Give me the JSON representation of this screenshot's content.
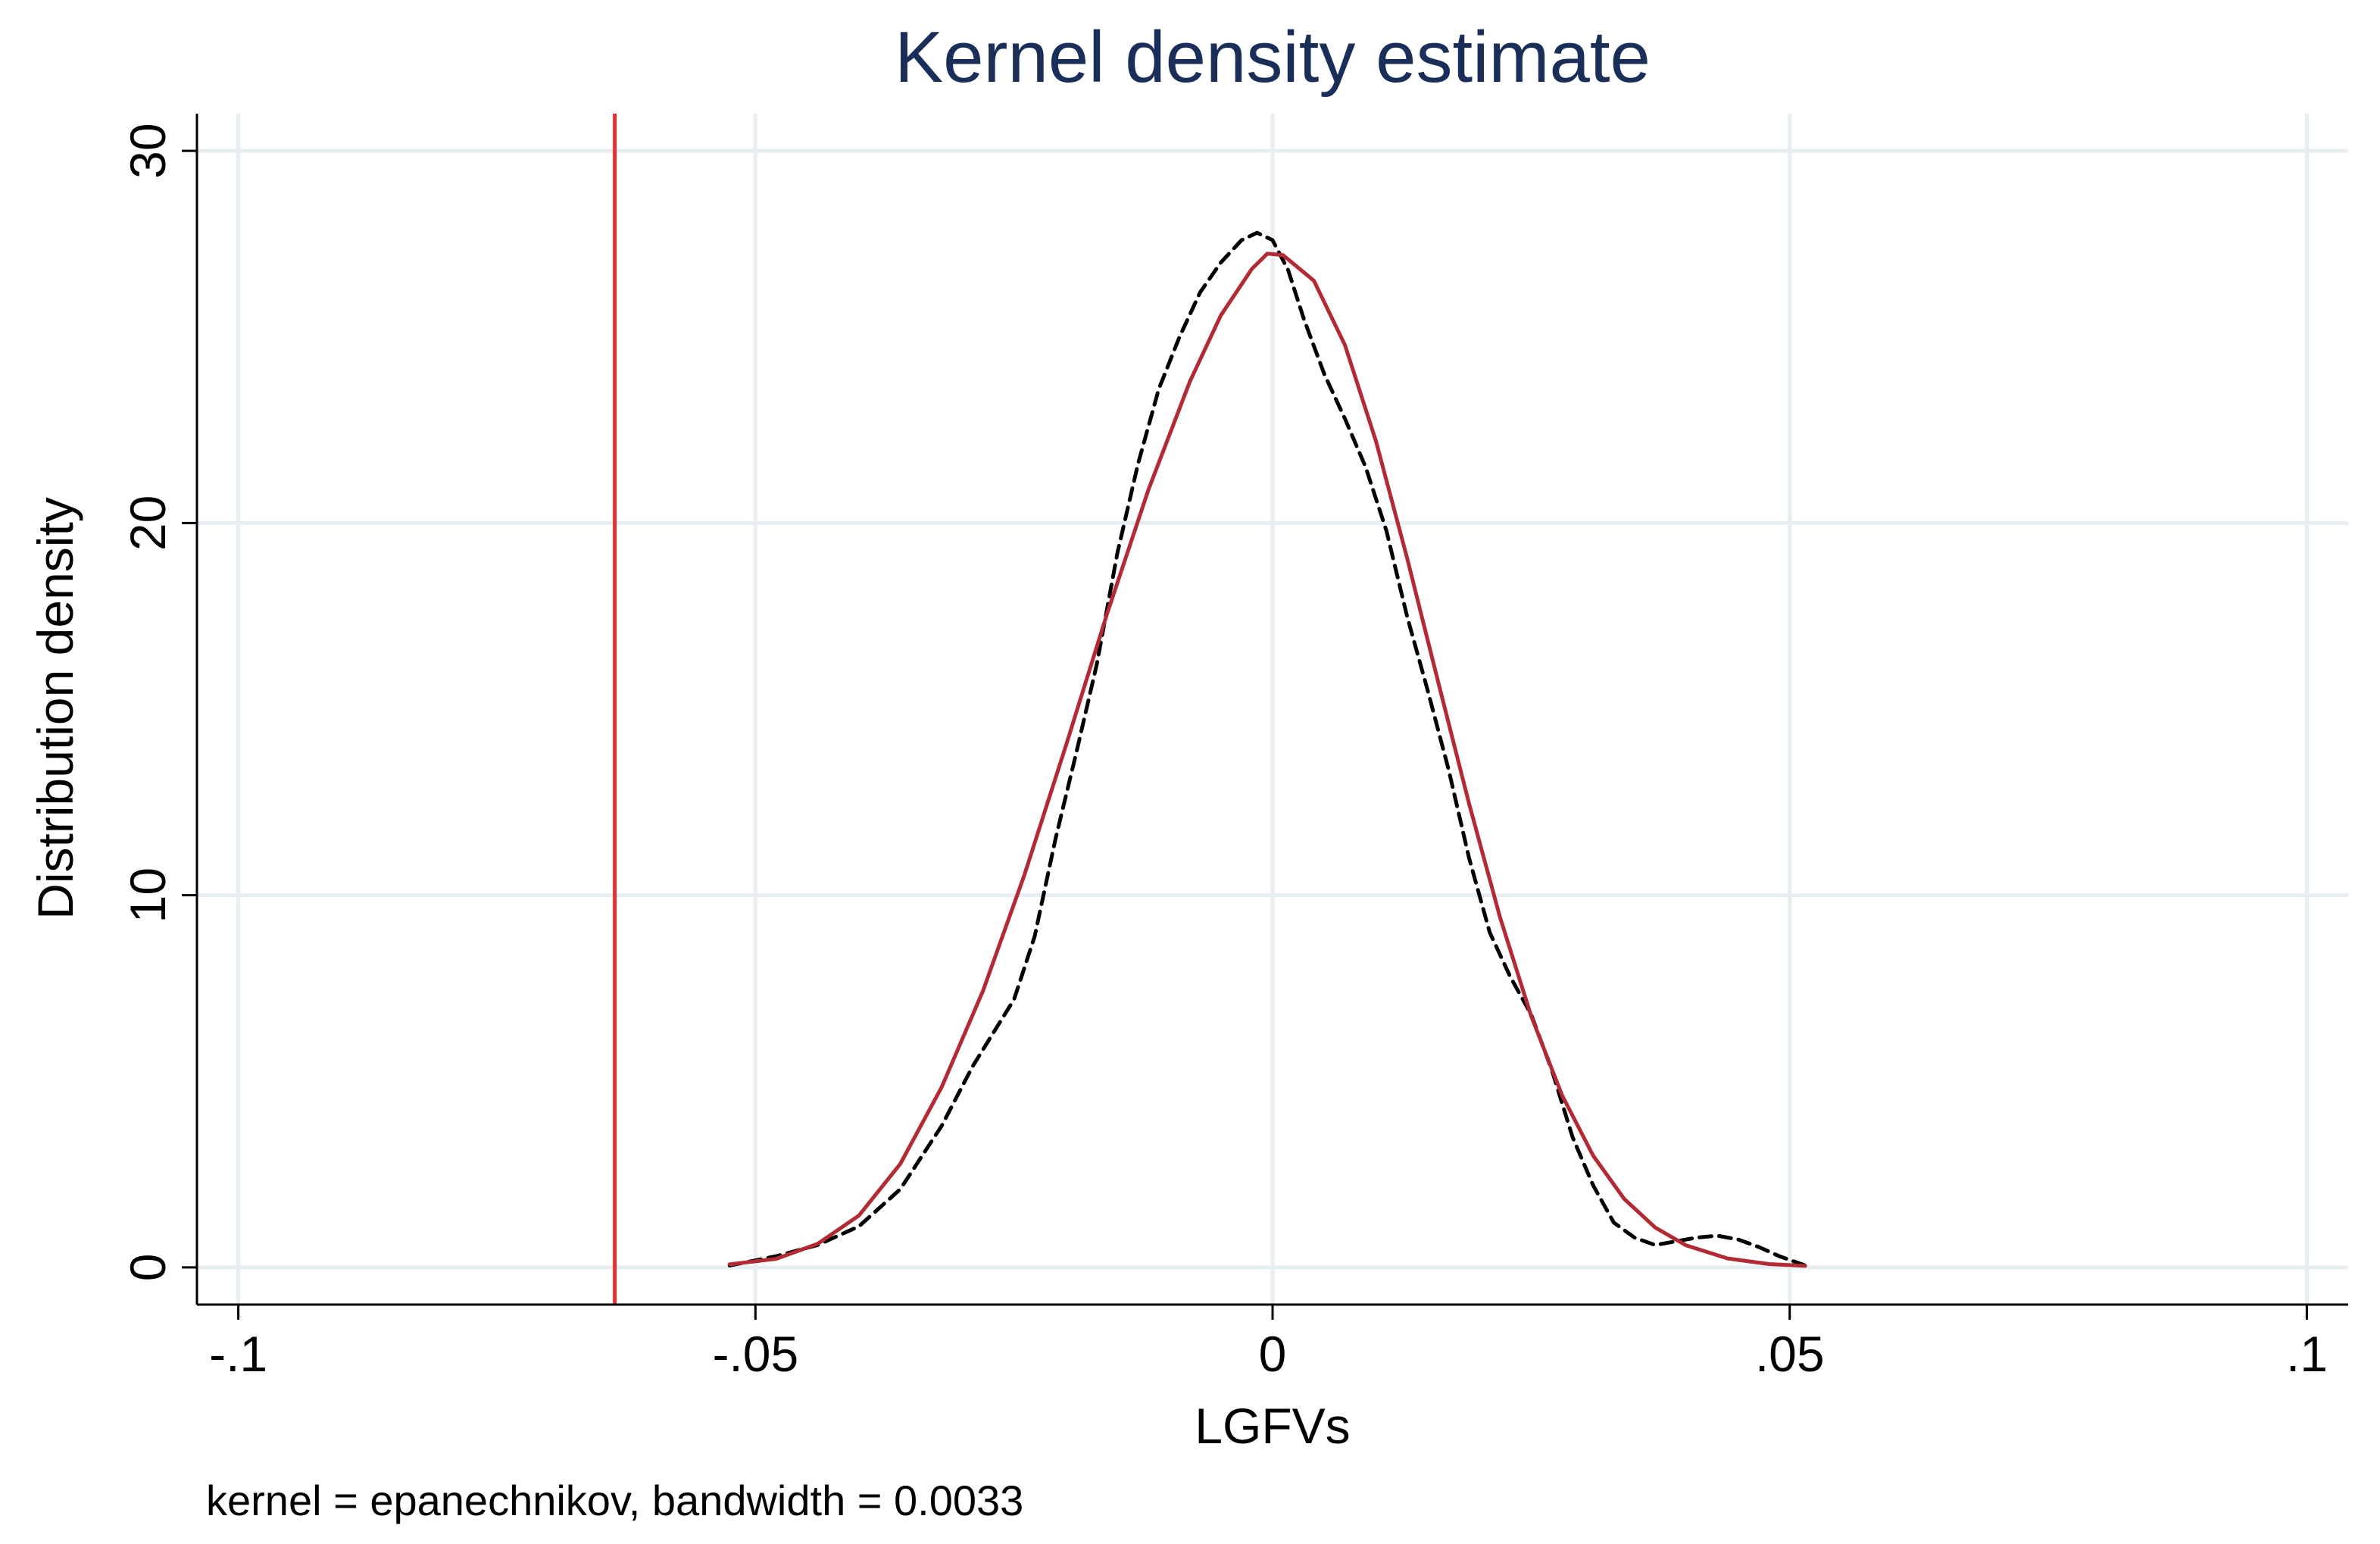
{
  "chart_data": {
    "type": "line",
    "title": "Kernel density estimate",
    "xlabel": "LGFVs",
    "ylabel": "Distribution density",
    "note": "kernel = epanechnikov, bandwidth = 0.0033",
    "xlim": [
      -0.104,
      0.104
    ],
    "ylim": [
      -1.0,
      31.0
    ],
    "x_ticks": [
      {
        "value": -0.1,
        "label": "-.1"
      },
      {
        "value": -0.05,
        "label": "-.05"
      },
      {
        "value": 0,
        "label": "0"
      },
      {
        "value": 0.05,
        "label": ".05"
      },
      {
        "value": 0.1,
        "label": ".1"
      }
    ],
    "y_ticks": [
      {
        "value": 0,
        "label": "0"
      },
      {
        "value": 10,
        "label": "10"
      },
      {
        "value": 20,
        "label": "20"
      },
      {
        "value": 30,
        "label": "30"
      }
    ],
    "grid": true,
    "reference_line": {
      "x": -0.0636,
      "color": "#e03030"
    },
    "series": [
      {
        "style": "dashed",
        "color": "#000000",
        "points": [
          [
            -0.0525,
            0.05
          ],
          [
            -0.048,
            0.3
          ],
          [
            -0.044,
            0.6
          ],
          [
            -0.04,
            1.1
          ],
          [
            -0.036,
            2.1
          ],
          [
            -0.032,
            3.8
          ],
          [
            -0.029,
            5.4
          ],
          [
            -0.027,
            6.3
          ],
          [
            -0.025,
            7.2
          ],
          [
            -0.023,
            8.9
          ],
          [
            -0.021,
            11.5
          ],
          [
            -0.019,
            13.8
          ],
          [
            -0.017,
            16.2
          ],
          [
            -0.015,
            19.2
          ],
          [
            -0.013,
            21.6
          ],
          [
            -0.011,
            23.6
          ],
          [
            -0.009,
            25.0
          ],
          [
            -0.007,
            26.2
          ],
          [
            -0.005,
            27.0
          ],
          [
            -0.003,
            27.6
          ],
          [
            -0.0015,
            27.8
          ],
          [
            0.0,
            27.6
          ],
          [
            0.0015,
            26.8
          ],
          [
            0.003,
            25.5
          ],
          [
            0.005,
            24.0
          ],
          [
            0.007,
            22.8
          ],
          [
            0.009,
            21.5
          ],
          [
            0.011,
            19.8
          ],
          [
            0.013,
            17.5
          ],
          [
            0.015,
            15.5
          ],
          [
            0.017,
            13.4
          ],
          [
            0.019,
            11.0
          ],
          [
            0.021,
            9.0
          ],
          [
            0.023,
            7.8
          ],
          [
            0.025,
            6.8
          ],
          [
            0.027,
            5.3
          ],
          [
            0.029,
            3.5
          ],
          [
            0.031,
            2.2
          ],
          [
            0.033,
            1.2
          ],
          [
            0.035,
            0.8
          ],
          [
            0.037,
            0.6
          ],
          [
            0.039,
            0.7
          ],
          [
            0.041,
            0.8
          ],
          [
            0.043,
            0.85
          ],
          [
            0.045,
            0.75
          ],
          [
            0.047,
            0.55
          ],
          [
            0.049,
            0.3
          ],
          [
            0.0515,
            0.05
          ]
        ]
      },
      {
        "style": "solid",
        "color": "#b22a34",
        "points": [
          [
            -0.0525,
            0.08
          ],
          [
            -0.048,
            0.23
          ],
          [
            -0.044,
            0.63
          ],
          [
            -0.04,
            1.39
          ],
          [
            -0.036,
            2.78
          ],
          [
            -0.032,
            4.84
          ],
          [
            -0.028,
            7.43
          ],
          [
            -0.024,
            10.54
          ],
          [
            -0.02,
            14.0
          ],
          [
            -0.016,
            17.56
          ],
          [
            -0.012,
            20.9
          ],
          [
            -0.008,
            23.8
          ],
          [
            -0.005,
            25.58
          ],
          [
            -0.002,
            26.83
          ],
          [
            -0.0005,
            27.24
          ],
          [
            0.001,
            27.2
          ],
          [
            0.004,
            26.51
          ],
          [
            0.007,
            24.78
          ],
          [
            0.01,
            22.2
          ],
          [
            0.013,
            19.07
          ],
          [
            0.016,
            15.74
          ],
          [
            0.019,
            12.46
          ],
          [
            0.022,
            9.4
          ],
          [
            0.025,
            6.76
          ],
          [
            0.028,
            4.62
          ],
          [
            0.031,
            3.0
          ],
          [
            0.034,
            1.84
          ],
          [
            0.037,
            1.07
          ],
          [
            0.04,
            0.59
          ],
          [
            0.044,
            0.24
          ],
          [
            0.048,
            0.09
          ],
          [
            0.0515,
            0.04
          ]
        ]
      }
    ]
  }
}
